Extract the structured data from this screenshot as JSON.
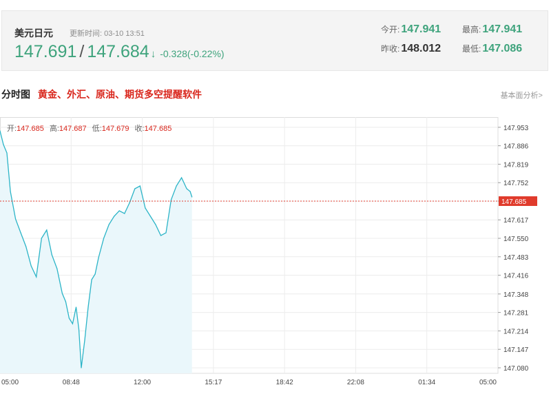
{
  "quote": {
    "name": "美元日元",
    "update_label": "更新时间:",
    "update_time": "03-10 13:51",
    "bid": "147.691",
    "separator": "/",
    "ask": "147.684",
    "direction_icon": "arrow-down-icon",
    "change": "-0.328(-0.22%)",
    "open_label": "今开:",
    "open": "147.941",
    "high_label": "最高:",
    "high": "147.941",
    "prev_close_label": "昨收:",
    "prev_close": "148.012",
    "low_label": "最低:",
    "low": "147.086",
    "colors": {
      "up_down": "#3ea37c",
      "alert": "#d9261c"
    }
  },
  "section": {
    "title": "分时图",
    "promo": "黄金、外汇、原油、期货多空提醒软件",
    "more_link": "基本面分析>"
  },
  "ohlc": {
    "open_label": "开:",
    "open": "147.685",
    "high_label": "高:",
    "high": "147.687",
    "low_label": "低:",
    "low": "147.679",
    "close_label": "收:",
    "close": "147.685"
  },
  "chart_data": {
    "type": "area",
    "x_ticks": [
      "05:00",
      "08:48",
      "12:00",
      "15:17",
      "18:42",
      "22:08",
      "01:34",
      "05:00"
    ],
    "y_ticks": [
      "147.953",
      "147.886",
      "147.819",
      "147.752",
      "147.685",
      "147.617",
      "147.550",
      "147.483",
      "147.416",
      "147.348",
      "147.281",
      "147.214",
      "147.147",
      "147.080"
    ],
    "y_range": [
      147.06,
      147.99
    ],
    "current_price": 147.685,
    "current_price_label": "147.685",
    "session": [
      "05:00",
      "05:00"
    ],
    "grid": true,
    "colors": {
      "line": "#2bb4c7",
      "fill": "#eaf7fb",
      "current": "#e03b2c"
    },
    "series": [
      {
        "times": [
          "05:00",
          "05:10",
          "05:20",
          "05:30",
          "05:45",
          "06:00",
          "06:15",
          "06:30",
          "06:45",
          "07:00",
          "07:15",
          "07:30",
          "07:45",
          "08:00",
          "08:10",
          "08:20",
          "08:30",
          "08:40",
          "08:48",
          "08:55",
          "09:05",
          "09:15",
          "09:25",
          "09:35",
          "09:45",
          "10:00",
          "10:15",
          "10:30",
          "10:45",
          "11:00",
          "11:15",
          "11:30",
          "11:45",
          "12:00",
          "12:15",
          "12:30",
          "12:45",
          "13:00",
          "13:15",
          "13:30",
          "13:45",
          "14:00",
          "14:10",
          "14:15"
        ],
        "values": [
          147.94,
          147.89,
          147.86,
          147.72,
          147.62,
          147.57,
          147.52,
          147.45,
          147.41,
          147.55,
          147.58,
          147.49,
          147.44,
          147.35,
          147.32,
          147.26,
          147.24,
          147.3,
          147.22,
          147.08,
          147.18,
          147.3,
          147.4,
          147.42,
          147.48,
          147.55,
          147.6,
          147.63,
          147.65,
          147.64,
          147.68,
          147.73,
          147.74,
          147.66,
          147.63,
          147.6,
          147.56,
          147.57,
          147.69,
          147.74,
          147.77,
          147.73,
          147.72,
          147.7
        ]
      }
    ]
  }
}
